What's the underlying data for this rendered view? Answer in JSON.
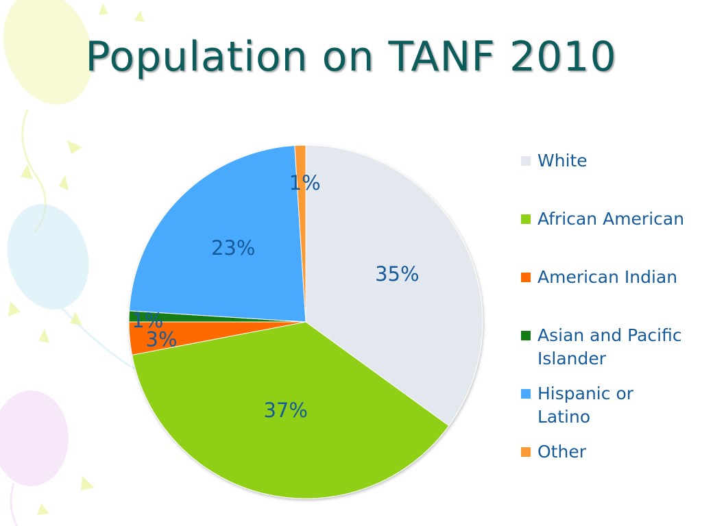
{
  "title": "Population on TANF 2010",
  "chart_data": {
    "type": "pie",
    "title": "Population on TANF 2010",
    "slices": [
      {
        "name": "White",
        "value": 35,
        "label": "35%",
        "color": "#e3e8ee"
      },
      {
        "name": "African American",
        "value": 37,
        "label": "37%",
        "color": "#8fd018"
      },
      {
        "name": "American Indian",
        "value": 3,
        "label": "3%",
        "color": "#ff6a00"
      },
      {
        "name": "Asian and Pacific Islander",
        "value": 1,
        "label": "1%",
        "color": "#137b13"
      },
      {
        "name": "Hispanic or Latino",
        "value": 23,
        "label": "23%",
        "color": "#4aa9fd"
      },
      {
        "name": "Other",
        "value": 1,
        "label": "1%",
        "color": "#fb9a35"
      }
    ],
    "legend_position": "right",
    "label_color": "#155a9a"
  }
}
